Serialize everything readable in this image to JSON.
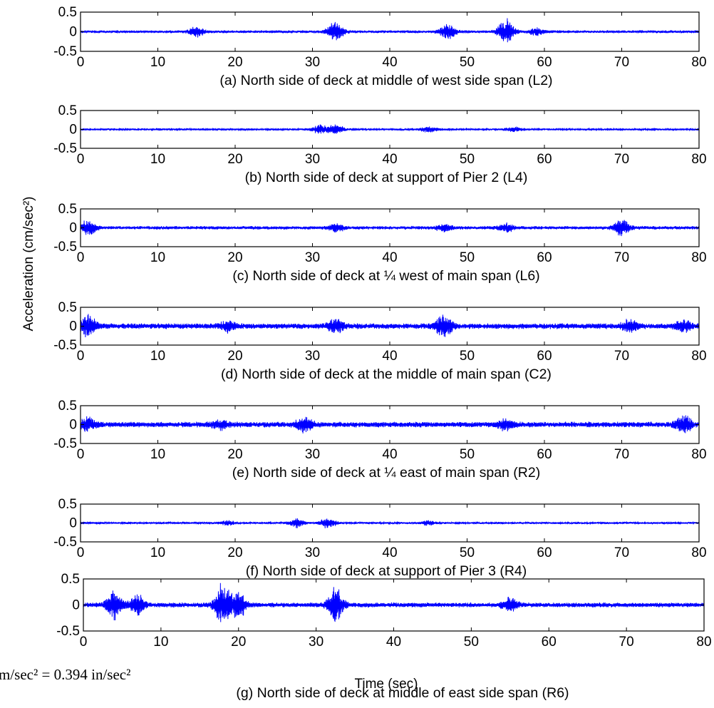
{
  "chart_data": {
    "type": "line",
    "ylabel": "Acceleration (cm/sec²)",
    "xlabel": "Time (sec)",
    "note": "m/sec² = 0.394 in/sec²",
    "xlim": [
      0,
      80
    ],
    "ylim": [
      -0.5,
      0.5
    ],
    "xticks": [
      0,
      10,
      20,
      30,
      40,
      50,
      60,
      70,
      80
    ],
    "yticks": [
      0.5,
      0,
      -0.5
    ],
    "xtick_labels": [
      "0",
      "10",
      "20",
      "30",
      "40",
      "50",
      "60",
      "70",
      "80"
    ],
    "ytick_labels": [
      "0.5",
      "0",
      "-0.5"
    ],
    "color": "#0000ff",
    "panels": [
      {
        "caption": "(a) North side of deck at middle of west side span (L2)",
        "base_amplitude": 0.04,
        "bursts": [
          [
            15,
            0.12
          ],
          [
            33,
            0.3
          ],
          [
            47.5,
            0.2
          ],
          [
            55,
            0.38
          ],
          [
            59,
            0.1
          ]
        ]
      },
      {
        "caption": "(b) North side of deck at support of Pier 2 (L4)",
        "base_amplitude": 0.03,
        "bursts": [
          [
            31,
            0.12
          ],
          [
            33,
            0.14
          ],
          [
            45,
            0.07
          ],
          [
            56,
            0.06
          ]
        ]
      },
      {
        "caption": "(c) North side of deck at ¼ west of main span (L6)",
        "base_amplitude": 0.05,
        "bursts": [
          [
            1,
            0.2
          ],
          [
            33,
            0.12
          ],
          [
            47,
            0.1
          ],
          [
            55,
            0.12
          ],
          [
            70,
            0.22
          ]
        ]
      },
      {
        "caption": "(d) North side of deck at the middle of main span (C2)",
        "base_amplitude": 0.08,
        "bursts": [
          [
            1,
            0.3
          ],
          [
            19,
            0.13
          ],
          [
            33,
            0.2
          ],
          [
            47,
            0.3
          ],
          [
            71,
            0.15
          ],
          [
            78,
            0.15
          ]
        ]
      },
      {
        "caption": "(e) North side of deck at ¼ east of main span (R2)",
        "base_amplitude": 0.08,
        "bursts": [
          [
            1,
            0.18
          ],
          [
            18,
            0.12
          ],
          [
            29,
            0.2
          ],
          [
            55,
            0.14
          ],
          [
            78,
            0.24
          ]
        ]
      },
      {
        "caption": "(f) North side of deck at support of Pier 3 (R4)",
        "base_amplitude": 0.03,
        "bursts": [
          [
            19,
            0.06
          ],
          [
            28,
            0.12
          ],
          [
            32,
            0.15
          ],
          [
            45,
            0.06
          ]
        ]
      },
      {
        "caption": "(g) North side of deck at middle of east side span (R6)",
        "base_amplitude": 0.05,
        "bursts": [
          [
            4,
            0.3
          ],
          [
            7,
            0.22
          ],
          [
            18,
            0.45
          ],
          [
            20,
            0.25
          ],
          [
            32.5,
            0.35
          ],
          [
            55,
            0.15
          ]
        ]
      }
    ]
  }
}
